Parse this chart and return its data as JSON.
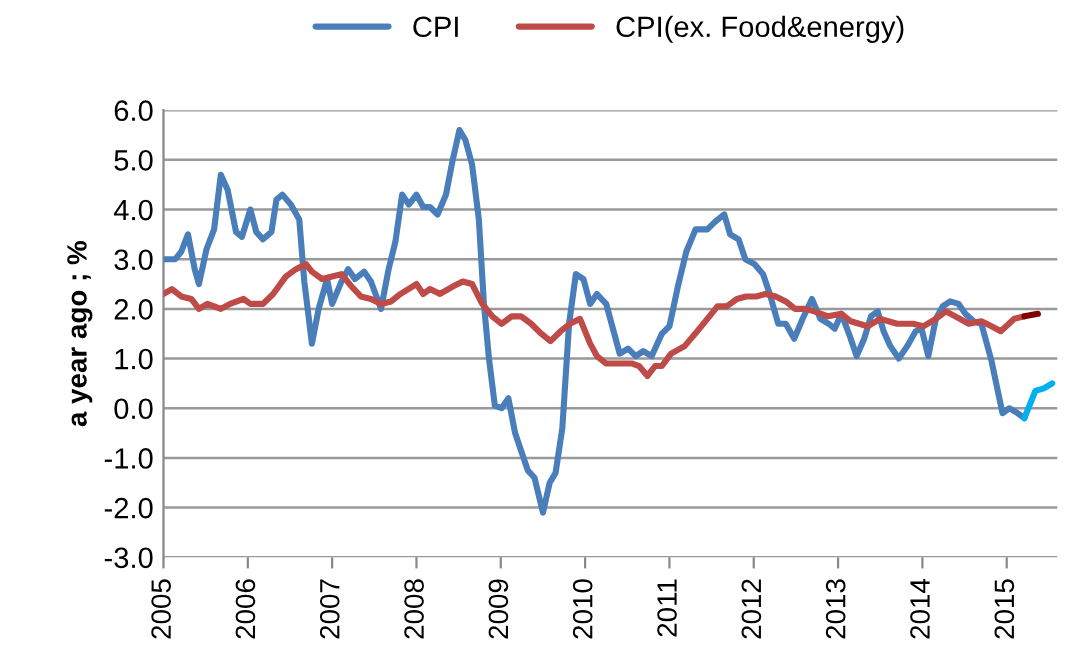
{
  "chart_data": {
    "type": "line",
    "ylabel": "a year ago ; %",
    "legend": "top",
    "grid": "y",
    "xlim": [
      2005,
      2015.6
    ],
    "xticks": [
      2005,
      2006,
      2007,
      2008,
      2009,
      2010,
      2011,
      2012,
      2013,
      2014,
      2015
    ],
    "ylim": [
      -3.0,
      6.0
    ],
    "yticks": [
      {
        "value": -3,
        "label": "-3.0"
      },
      {
        "value": -2,
        "label": "-2.0"
      },
      {
        "value": -1,
        "label": "-1.0"
      },
      {
        "value": 0,
        "label": "0.0"
      },
      {
        "value": 1,
        "label": "1.0"
      },
      {
        "value": 2,
        "label": "2.0"
      },
      {
        "value": 3,
        "label": "3.0"
      },
      {
        "value": 4,
        "label": "4.0"
      },
      {
        "value": 5,
        "label": "5.0"
      },
      {
        "value": 6,
        "label": "6.0"
      }
    ],
    "series": [
      {
        "name": "CPI",
        "color": "#4a7ebb",
        "x": [
          2005.0,
          2005.14,
          2005.21,
          2005.29,
          2005.37,
          2005.42,
          2005.51,
          2005.6,
          2005.68,
          2005.76,
          2005.86,
          2005.93,
          2006.03,
          2006.1,
          2006.18,
          2006.28,
          2006.34,
          2006.41,
          2006.51,
          2006.61,
          2006.67,
          2006.76,
          2006.84,
          2006.94,
          2007.0,
          2007.11,
          2007.19,
          2007.27,
          2007.38,
          2007.46,
          2007.58,
          2007.67,
          2007.75,
          2007.83,
          2007.91,
          2008.0,
          2008.08,
          2008.16,
          2008.25,
          2008.35,
          2008.43,
          2008.51,
          2008.58,
          2008.66,
          2008.74,
          2008.8,
          2008.86,
          2008.93,
          2009.01,
          2009.09,
          2009.17,
          2009.24,
          2009.32,
          2009.4,
          2009.5,
          2009.58,
          2009.65,
          2009.73,
          2009.81,
          2009.89,
          2009.98,
          2010.06,
          2010.14,
          2010.25,
          2010.41,
          2010.51,
          2010.6,
          2010.69,
          2010.79,
          2010.91,
          2011.0,
          2011.1,
          2011.2,
          2011.31,
          2011.45,
          2011.54,
          2011.65,
          2011.72,
          2011.82,
          2011.9,
          2012.01,
          2012.11,
          2012.19,
          2012.29,
          2012.38,
          2012.48,
          2012.58,
          2012.69,
          2012.79,
          2012.89,
          2012.96,
          2013.04,
          2013.14,
          2013.22,
          2013.31,
          2013.39,
          2013.47,
          2013.54,
          2013.62,
          2013.72,
          2013.82,
          2013.92,
          2013.99,
          2014.07,
          2014.16,
          2014.24,
          2014.33,
          2014.43,
          2014.51,
          2014.61,
          2014.7,
          2014.82,
          2014.95,
          2015.03,
          2015.13,
          2015.21
        ],
        "values": [
          3.0,
          3.0,
          3.15,
          3.5,
          2.8,
          2.5,
          3.2,
          3.6,
          4.7,
          4.4,
          3.55,
          3.45,
          4.0,
          3.55,
          3.4,
          3.55,
          4.2,
          4.3,
          4.1,
          3.8,
          2.55,
          1.3,
          2.0,
          2.6,
          2.1,
          2.55,
          2.8,
          2.6,
          2.75,
          2.55,
          2.0,
          2.8,
          3.35,
          4.3,
          4.1,
          4.3,
          4.05,
          4.05,
          3.9,
          4.3,
          5.0,
          5.6,
          5.4,
          4.9,
          3.8,
          2.1,
          1.0,
          0.05,
          0.0,
          0.2,
          -0.5,
          -0.85,
          -1.25,
          -1.4,
          -2.1,
          -1.5,
          -1.3,
          -0.4,
          1.7,
          2.7,
          2.6,
          2.1,
          2.3,
          2.1,
          1.1,
          1.2,
          1.05,
          1.15,
          1.05,
          1.5,
          1.65,
          2.45,
          3.15,
          3.6,
          3.6,
          3.75,
          3.9,
          3.5,
          3.4,
          3.0,
          2.9,
          2.7,
          2.3,
          1.7,
          1.7,
          1.4,
          1.8,
          2.2,
          1.8,
          1.7,
          1.6,
          1.9,
          1.45,
          1.05,
          1.4,
          1.85,
          1.95,
          1.55,
          1.25,
          1.0,
          1.25,
          1.55,
          1.6,
          1.05,
          1.8,
          2.05,
          2.15,
          2.1,
          1.9,
          1.75,
          1.7,
          0.95,
          -0.1,
          0.0,
          -0.1,
          -0.2
        ]
      },
      {
        "name": "CPI(ex. Food&energy)",
        "color": "#be4b48",
        "x": [
          2005.0,
          2005.1,
          2005.21,
          2005.33,
          2005.42,
          2005.52,
          2005.68,
          2005.79,
          2005.95,
          2006.03,
          2006.18,
          2006.3,
          2006.45,
          2006.57,
          2006.69,
          2006.76,
          2006.88,
          2007.0,
          2007.11,
          2007.23,
          2007.34,
          2007.46,
          2007.58,
          2007.7,
          2007.81,
          2008.0,
          2008.08,
          2008.16,
          2008.28,
          2008.43,
          2008.55,
          2008.66,
          2008.78,
          2008.9,
          2009.01,
          2009.13,
          2009.24,
          2009.36,
          2009.48,
          2009.59,
          2009.71,
          2009.82,
          2009.94,
          2010.06,
          2010.14,
          2010.25,
          2010.56,
          2010.64,
          2010.74,
          2010.83,
          2010.91,
          2011.02,
          2011.18,
          2011.33,
          2011.45,
          2011.57,
          2011.68,
          2011.8,
          2011.91,
          2012.03,
          2012.14,
          2012.26,
          2012.38,
          2012.49,
          2012.61,
          2012.72,
          2012.88,
          2013.04,
          2013.15,
          2013.35,
          2013.5,
          2013.7,
          2013.89,
          2014.01,
          2014.16,
          2014.28,
          2014.39,
          2014.55,
          2014.7,
          2014.82,
          2014.93,
          2015.09,
          2015.21
        ],
        "values": [
          2.3,
          2.4,
          2.25,
          2.2,
          2.0,
          2.1,
          2.0,
          2.1,
          2.2,
          2.1,
          2.1,
          2.3,
          2.65,
          2.8,
          2.9,
          2.75,
          2.6,
          2.65,
          2.7,
          2.45,
          2.25,
          2.2,
          2.1,
          2.15,
          2.3,
          2.5,
          2.3,
          2.4,
          2.3,
          2.45,
          2.55,
          2.5,
          2.1,
          1.85,
          1.7,
          1.85,
          1.85,
          1.7,
          1.5,
          1.35,
          1.55,
          1.7,
          1.8,
          1.3,
          1.05,
          0.9,
          0.9,
          0.85,
          0.65,
          0.85,
          0.85,
          1.1,
          1.25,
          1.55,
          1.8,
          2.05,
          2.05,
          2.2,
          2.25,
          2.25,
          2.3,
          2.25,
          2.15,
          2.0,
          2.0,
          1.95,
          1.85,
          1.9,
          1.75,
          1.65,
          1.8,
          1.7,
          1.7,
          1.65,
          1.8,
          1.95,
          1.85,
          1.7,
          1.75,
          1.65,
          1.55,
          1.8,
          1.85
        ]
      },
      {
        "color": "#00b0f0",
        "x": [
          2015.21,
          2015.34,
          2015.44,
          2015.54
        ],
        "values": [
          -0.2,
          0.35,
          0.4,
          0.5
        ]
      },
      {
        "color": "#7f0000",
        "x": [
          2015.21,
          2015.37
        ],
        "values": [
          1.85,
          1.9
        ]
      }
    ]
  }
}
